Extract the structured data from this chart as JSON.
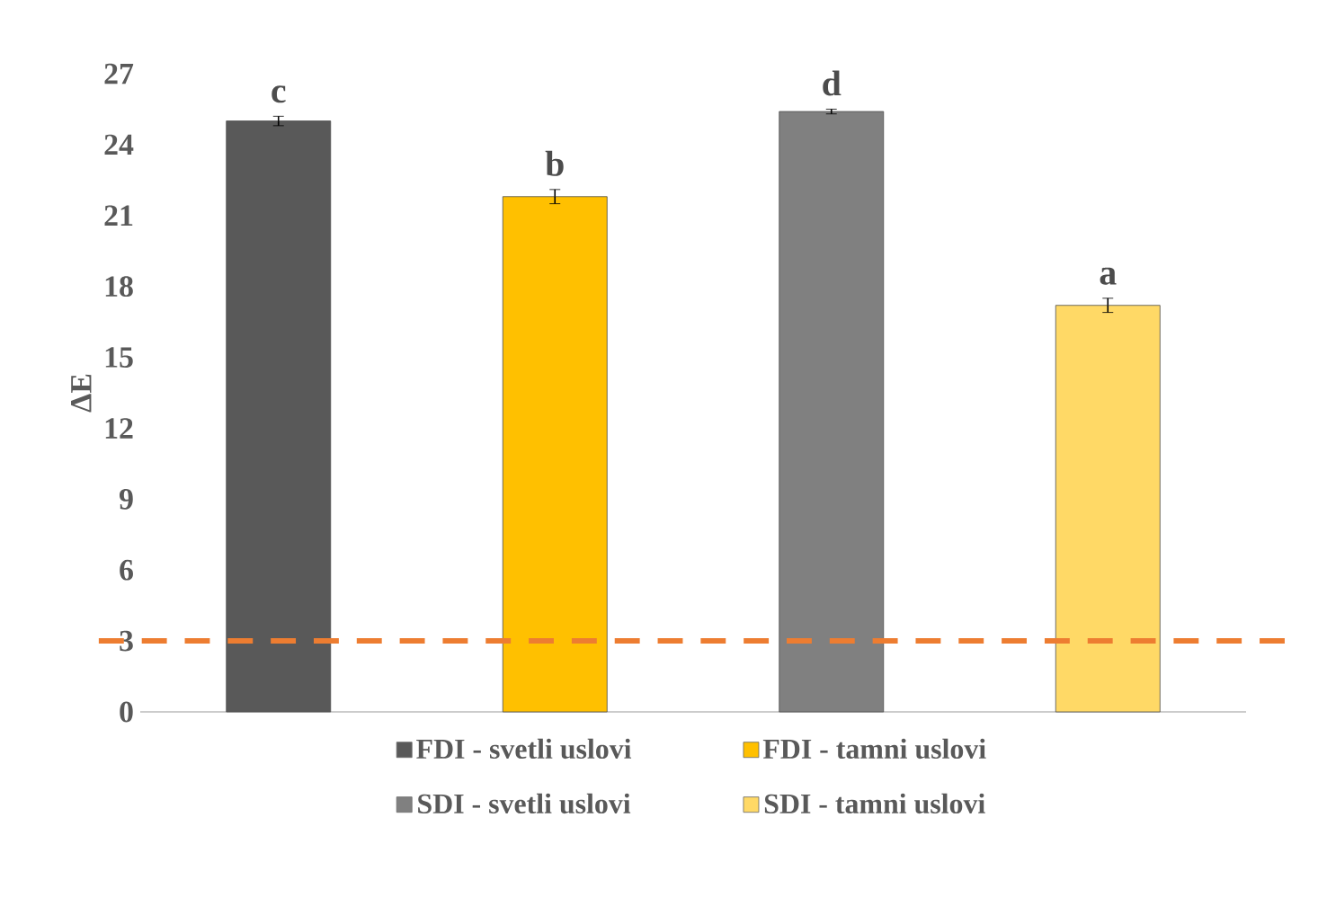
{
  "chart_data": {
    "type": "bar",
    "ylabel": "ΔE",
    "categories": [
      null,
      null,
      null,
      null
    ],
    "series": [
      {
        "name": "FDI - svetli uslovi",
        "color": "#595959",
        "values": [
          25.0,
          null,
          null,
          null
        ],
        "errors": [
          0.2,
          null,
          null,
          null
        ],
        "value_labels": [
          "c",
          null,
          null,
          null
        ]
      },
      {
        "name": "FDI - tamni uslovi",
        "color": "#ffc000",
        "values": [
          null,
          21.8,
          null,
          null
        ],
        "errors": [
          null,
          0.3,
          null,
          null
        ],
        "value_labels": [
          null,
          "b",
          null,
          null
        ]
      },
      {
        "name": "SDI - svetli uslovi",
        "color": "#808080",
        "values": [
          null,
          null,
          25.4,
          null
        ],
        "errors": [
          null,
          null,
          0.1,
          null
        ],
        "value_labels": [
          null,
          null,
          "d",
          null
        ]
      },
      {
        "name": "SDI - tamni uslovi",
        "color": "#ffd966",
        "values": [
          null,
          null,
          null,
          17.2
        ],
        "errors": [
          null,
          null,
          null,
          0.3
        ],
        "value_labels": [
          null,
          null,
          null,
          "a"
        ]
      }
    ],
    "ylim": [
      0,
      27
    ],
    "yticks": [
      0,
      3,
      6,
      9,
      12,
      15,
      18,
      21,
      24,
      27
    ],
    "legend": "bottom",
    "ref_lines": [
      {
        "axis": "y",
        "value": 3,
        "color": "#ed7d31",
        "line_style": "dashed"
      }
    ]
  }
}
